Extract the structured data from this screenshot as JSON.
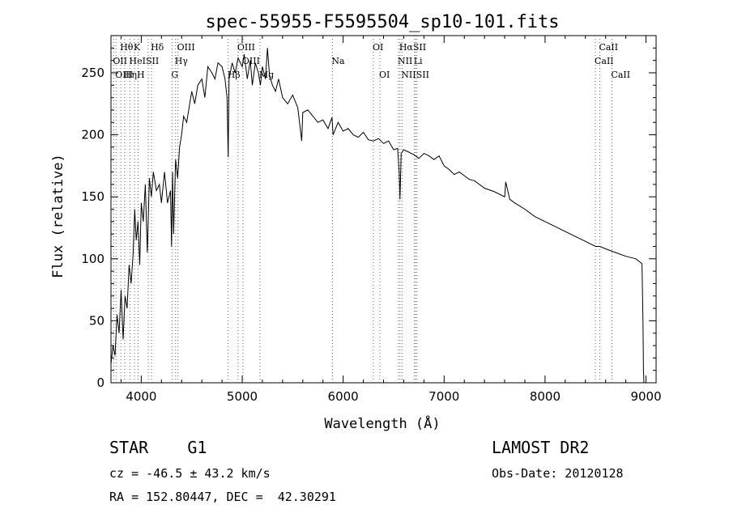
{
  "chart_data": {
    "type": "line",
    "title": "spec-55955-F5595504_sp10-101.fits",
    "xlabel": "Wavelength (Å)",
    "ylabel": "Flux (relative)",
    "xlim": [
      3700,
      9100
    ],
    "ylim": [
      0,
      280
    ],
    "xticks": [
      4000,
      5000,
      6000,
      7000,
      8000,
      9000
    ],
    "yticks": [
      0,
      50,
      100,
      150,
      200,
      250
    ],
    "grid": false,
    "series": [
      {
        "x": [
          3700,
          3720,
          3740,
          3760,
          3780,
          3800,
          3820,
          3840,
          3860,
          3880,
          3900,
          3920,
          3935,
          3950,
          3968,
          3985,
          4000,
          4020,
          4040,
          4060,
          4080,
          4100,
          4120,
          4150,
          4180,
          4200,
          4230,
          4260,
          4290,
          4300,
          4310,
          4320,
          4340,
          4360,
          4380,
          4400,
          4420,
          4450,
          4480,
          4500,
          4530,
          4560,
          4600,
          4630,
          4660,
          4700,
          4730,
          4760,
          4800,
          4830,
          4850,
          4861,
          4870,
          4900,
          4930,
          4960,
          5000,
          5020,
          5050,
          5080,
          5100,
          5130,
          5160,
          5180,
          5200,
          5230,
          5250,
          5270,
          5300,
          5330,
          5360,
          5400,
          5450,
          5500,
          5550,
          5590,
          5600,
          5650,
          5700,
          5750,
          5800,
          5850,
          5890,
          5900,
          5950,
          6000,
          6050,
          6100,
          6150,
          6200,
          6250,
          6300,
          6350,
          6400,
          6450,
          6500,
          6540,
          6555,
          6563,
          6575,
          6600,
          6650,
          6700,
          6750,
          6800,
          6850,
          6900,
          6950,
          7000,
          7050,
          7100,
          7150,
          7200,
          7250,
          7300,
          7400,
          7500,
          7600,
          7610,
          7650,
          7700,
          7800,
          7900,
          8000,
          8100,
          8200,
          8300,
          8400,
          8500,
          8542,
          8600,
          8700,
          8800,
          8900,
          8960,
          8970,
          8975,
          8980
        ],
        "y": [
          15,
          30,
          22,
          55,
          40,
          75,
          35,
          70,
          60,
          95,
          80,
          105,
          140,
          115,
          130,
          95,
          145,
          130,
          160,
          105,
          165,
          150,
          170,
          155,
          160,
          145,
          170,
          145,
          155,
          110,
          170,
          120,
          180,
          165,
          190,
          200,
          215,
          210,
          225,
          235,
          225,
          240,
          245,
          230,
          255,
          250,
          245,
          258,
          255,
          245,
          230,
          182,
          245,
          258,
          250,
          262,
          255,
          265,
          245,
          260,
          240,
          258,
          250,
          240,
          255,
          245,
          270,
          248,
          240,
          235,
          245,
          230,
          225,
          232,
          222,
          195,
          218,
          220,
          215,
          210,
          212,
          205,
          214,
          200,
          210,
          203,
          205,
          200,
          198,
          202,
          196,
          195,
          197,
          193,
          195,
          188,
          189,
          170,
          148,
          185,
          188,
          186,
          184,
          181,
          185,
          183,
          180,
          183,
          175,
          172,
          168,
          170,
          167,
          164,
          163,
          157,
          154,
          150,
          162,
          148,
          145,
          140,
          134,
          130,
          126,
          122,
          118,
          114,
          110,
          110,
          108,
          105,
          102,
          100,
          96,
          50,
          10,
          0
        ]
      }
    ],
    "lines": [
      {
        "row": 1,
        "labels": [
          "Hθ"
        ],
        "x": [
          3798
        ]
      },
      {
        "row": 1,
        "labels": [
          "K"
        ],
        "x": [
          3933
        ]
      },
      {
        "row": 1,
        "labels": [
          "Hδ"
        ],
        "x": [
          4102
        ]
      },
      {
        "row": 1,
        "labels": [
          "OIII"
        ],
        "x": [
          4363
        ]
      },
      {
        "row": 1,
        "labels": [
          "OIII"
        ],
        "x": [
          4959
        ]
      },
      {
        "row": 1,
        "labels": [
          "OI"
        ],
        "x": [
          6300
        ]
      },
      {
        "row": 1,
        "labels": [
          "Hα",
          "SII"
        ],
        "x": [
          6563,
          6717
        ]
      },
      {
        "row": 1,
        "labels": [
          "CaII"
        ],
        "x": [
          8542
        ]
      },
      {
        "row": 2,
        "labels": [
          "OII"
        ],
        "x": [
          3727
        ]
      },
      {
        "row": 2,
        "labels": [
          "HeI",
          "SII"
        ],
        "x": [
          3889,
          4069
        ]
      },
      {
        "row": 2,
        "labels": [
          "Hγ"
        ],
        "x": [
          4340
        ]
      },
      {
        "row": 2,
        "labels": [
          "OIII"
        ],
        "x": [
          5007
        ]
      },
      {
        "row": 2,
        "labels": [
          "Na"
        ],
        "x": [
          5893
        ]
      },
      {
        "row": 2,
        "labels": [
          "NII"
        ],
        "x": [
          6548
        ]
      },
      {
        "row": 2,
        "labels": [
          "Li"
        ],
        "x": [
          6707
        ]
      },
      {
        "row": 2,
        "labels": [
          "CaII"
        ],
        "x": [
          8498
        ]
      },
      {
        "row": 3,
        "labels": [
          "OIII"
        ],
        "x": [
          3750
        ]
      },
      {
        "row": 3,
        "labels": [
          "Hη",
          "H"
        ],
        "x": [
          3835,
          3968
        ]
      },
      {
        "row": 3,
        "labels": [
          "G"
        ],
        "x": [
          4305
        ]
      },
      {
        "row": 3,
        "labels": [
          "Hβ"
        ],
        "x": [
          4861
        ]
      },
      {
        "row": 3,
        "labels": [
          "Mg"
        ],
        "x": [
          5175
        ]
      },
      {
        "row": 3,
        "labels": [
          "OI"
        ],
        "x": [
          6364
        ]
      },
      {
        "row": 3,
        "labels": [
          "NII"
        ],
        "x": [
          6583
        ]
      },
      {
        "row": 3,
        "labels": [
          "SII"
        ],
        "x": [
          6731
        ]
      },
      {
        "row": 3,
        "labels": [
          "CaII"
        ],
        "x": [
          8662
        ]
      }
    ]
  },
  "footer": {
    "object": "STAR    G1",
    "survey": "LAMOST DR2",
    "velocity": "cz = -46.5 ± 43.2 km/s",
    "obs_date": "Obs-Date: 20120128",
    "coords": "RA = 152.80447, DEC =  42.30291"
  }
}
